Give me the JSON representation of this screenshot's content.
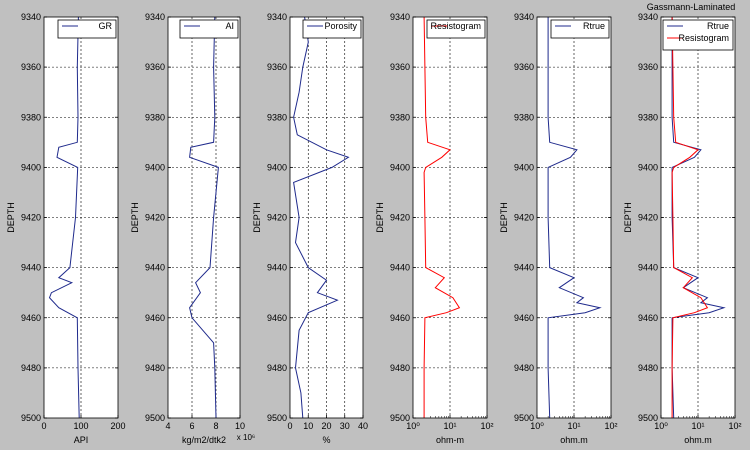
{
  "figure": {
    "title": "Gassmann-Laminated",
    "background_color": "#c0c0c0",
    "blue": "#1f2a8c",
    "red": "#ff0000",
    "grid": "dashed"
  },
  "chart_data": [
    {
      "type": "line",
      "ylabel": "DEPTH",
      "xlabel": "API",
      "ylim": [
        9340,
        9500
      ],
      "y_inverted": true,
      "xlim": [
        0,
        200
      ],
      "xticks": [
        "0",
        "100",
        "200"
      ],
      "xscale": "linear",
      "grid": true,
      "legend": "top-right",
      "series": [
        {
          "name": "GR",
          "color": "#1f2a8c",
          "depth": [
            9340,
            9360,
            9380,
            9390,
            9392,
            9396,
            9400,
            9420,
            9440,
            9444,
            9446,
            9450,
            9452,
            9456,
            9460,
            9480,
            9500
          ],
          "values": [
            93,
            90,
            92,
            90,
            40,
            35,
            91,
            85,
            70,
            40,
            75,
            20,
            15,
            40,
            90,
            92,
            95
          ]
        }
      ]
    },
    {
      "type": "line",
      "ylabel": "DEPTH",
      "xlabel": "kg/m2/dtk2",
      "x_multiplier": "x 10⁶",
      "ylim": [
        9340,
        9500
      ],
      "y_inverted": true,
      "xlim": [
        4,
        10
      ],
      "xticks": [
        "4",
        "6",
        "8",
        "10"
      ],
      "xscale": "linear",
      "grid": true,
      "legend": "top-right",
      "series": [
        {
          "name": "AI",
          "color": "#1f2a8c",
          "depth": [
            9340,
            9360,
            9380,
            9390,
            9392,
            9396,
            9400,
            9420,
            9440,
            9446,
            9450,
            9456,
            9460,
            9470,
            9480,
            9500
          ],
          "values": [
            7.9,
            7.8,
            7.9,
            7.8,
            5.9,
            5.8,
            8.2,
            7.8,
            7.5,
            6.3,
            6.7,
            5.8,
            6.0,
            7.8,
            7.9,
            8.0
          ]
        }
      ]
    },
    {
      "type": "line",
      "ylabel": "DEPTH",
      "xlabel": "%",
      "ylim": [
        9340,
        9500
      ],
      "y_inverted": true,
      "xlim": [
        0,
        40
      ],
      "xticks": [
        "0",
        "10",
        "20",
        "30",
        "40"
      ],
      "xscale": "linear",
      "grid": true,
      "legend": "top-right",
      "series": [
        {
          "name": "Porosity",
          "color": "#1f2a8c",
          "depth": [
            9340,
            9350,
            9360,
            9370,
            9380,
            9387,
            9393,
            9396,
            9400,
            9406,
            9420,
            9430,
            9440,
            9445,
            9450,
            9453,
            9458,
            9465,
            9480,
            9490,
            9500
          ],
          "values": [
            8,
            10,
            7,
            5,
            2,
            4,
            20,
            32,
            23,
            2,
            5,
            3,
            10,
            20,
            15,
            26,
            10,
            5,
            3,
            6,
            7
          ]
        }
      ]
    },
    {
      "type": "line",
      "ylabel": "DEPTH",
      "xlabel": "ohm-m",
      "ylim": [
        9340,
        9500
      ],
      "y_inverted": true,
      "xlim": [
        1,
        100
      ],
      "xticks": [
        "10⁰",
        "10¹",
        "10²"
      ],
      "xscale": "log",
      "grid": true,
      "legend": "top-right",
      "series": [
        {
          "name": "Resistogram",
          "color": "#ff0000",
          "depth": [
            9340,
            9380,
            9390,
            9393,
            9396,
            9400,
            9402,
            9420,
            9440,
            9444,
            9448,
            9452,
            9456,
            9458,
            9460,
            9480,
            9500
          ],
          "values": [
            2.0,
            2.2,
            2.5,
            10,
            6,
            2.2,
            2.0,
            2.1,
            2.2,
            7,
            4,
            12,
            18,
            8,
            2.1,
            2.0,
            2.0
          ]
        }
      ]
    },
    {
      "type": "line",
      "ylabel": "DEPTH",
      "xlabel": "ohm.m",
      "ylim": [
        9340,
        9500
      ],
      "y_inverted": true,
      "xlim": [
        1,
        100
      ],
      "xticks": [
        "10⁰",
        "10¹",
        "10²"
      ],
      "xscale": "log",
      "grid": true,
      "legend": "top-right",
      "series": [
        {
          "name": "Rtrue",
          "color": "#1f2a8c",
          "depth": [
            9340,
            9380,
            9390,
            9393,
            9396,
            9400,
            9402,
            9420,
            9440,
            9444,
            9448,
            9452,
            9454,
            9456,
            9458,
            9460,
            9480,
            9500
          ],
          "values": [
            2.0,
            2.0,
            2.2,
            12,
            8,
            2.0,
            2.0,
            2.0,
            2.2,
            10,
            4,
            18,
            12,
            50,
            20,
            2.0,
            2.0,
            2.2
          ]
        }
      ]
    },
    {
      "type": "line",
      "ylabel": "DEPTH",
      "xlabel": "ohm.m",
      "ylim": [
        9340,
        9500
      ],
      "y_inverted": true,
      "xlim": [
        1,
        100
      ],
      "xticks": [
        "10⁰",
        "10¹",
        "10²"
      ],
      "xscale": "log",
      "grid": true,
      "legend": "top-right",
      "series": [
        {
          "name": "Rtrue",
          "color": "#1f2a8c",
          "depth": [
            9340,
            9380,
            9390,
            9393,
            9396,
            9400,
            9402,
            9420,
            9440,
            9444,
            9448,
            9452,
            9454,
            9456,
            9458,
            9460,
            9480,
            9500
          ],
          "values": [
            2.0,
            2.0,
            2.2,
            12,
            8,
            2.0,
            2.0,
            2.0,
            2.2,
            10,
            4,
            18,
            12,
            50,
            20,
            2.0,
            2.0,
            2.2
          ]
        },
        {
          "name": "Resistogram",
          "color": "#ff0000",
          "depth": [
            9340,
            9380,
            9390,
            9393,
            9396,
            9400,
            9402,
            9420,
            9440,
            9444,
            9448,
            9452,
            9456,
            9458,
            9460,
            9480,
            9500
          ],
          "values": [
            2.0,
            2.2,
            2.5,
            10,
            6,
            2.2,
            2.0,
            2.1,
            2.2,
            7,
            4,
            12,
            18,
            8,
            2.1,
            2.0,
            2.0
          ]
        }
      ]
    }
  ]
}
